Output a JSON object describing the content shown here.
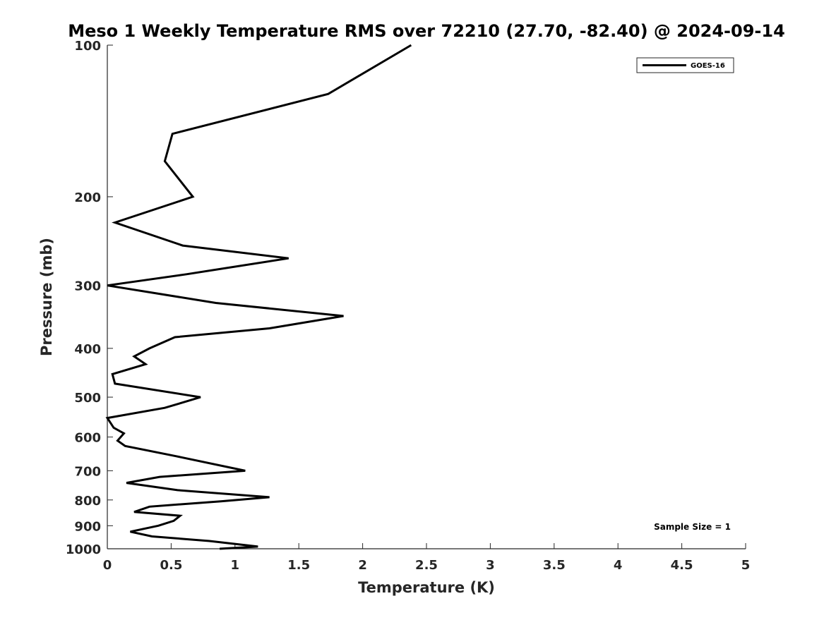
{
  "chart_data": {
    "type": "line",
    "title": "Meso 1 Weekly Temperature RMS over 72210 (27.70, -82.40) @ 2024-09-14",
    "xlabel": "Temperature (K)",
    "ylabel": "Pressure (mb)",
    "xlim": [
      0,
      5
    ],
    "ylim": [
      100,
      1000
    ],
    "y_scale": "log",
    "y_reversed": true,
    "grid": false,
    "x_ticks": [
      0,
      0.5,
      1,
      1.5,
      2,
      2.5,
      3,
      3.5,
      4,
      4.5,
      5
    ],
    "x_tick_labels": [
      "0",
      "0.5",
      "1",
      "1.5",
      "2",
      "2.5",
      "3",
      "3.5",
      "4",
      "4.5",
      "5"
    ],
    "y_ticks": [
      100,
      200,
      300,
      400,
      500,
      600,
      700,
      800,
      900,
      1000
    ],
    "y_tick_labels": [
      "100",
      "200",
      "300",
      "400",
      "500",
      "600",
      "700",
      "800",
      "900",
      "1000"
    ],
    "legend_position": "top-right",
    "series": [
      {
        "name": "GOES-16",
        "color": "#000000",
        "x": [
          2.38,
          1.73,
          0.51,
          0.45,
          0.67,
          0.06,
          0.59,
          1.42,
          0.62,
          0.0,
          0.85,
          1.85,
          1.27,
          0.53,
          0.33,
          0.21,
          0.3,
          0.04,
          0.06,
          0.73,
          0.45,
          0.0,
          0.05,
          0.13,
          0.08,
          0.14,
          0.54,
          1.08,
          0.41,
          0.15,
          0.55,
          1.27,
          0.89,
          0.33,
          0.21,
          0.57,
          0.52,
          0.4,
          0.18,
          0.35,
          0.8,
          1.18,
          0.88
        ],
        "y": [
          100,
          125,
          150,
          170,
          200,
          225,
          250,
          265,
          285,
          300,
          325,
          345,
          365,
          380,
          400,
          415,
          430,
          450,
          470,
          500,
          525,
          550,
          575,
          590,
          610,
          625,
          655,
          700,
          720,
          740,
          765,
          790,
          805,
          825,
          845,
          860,
          880,
          900,
          925,
          945,
          965,
          990,
          1000
        ]
      }
    ],
    "annotations": [
      "Sample Size = 1"
    ]
  }
}
